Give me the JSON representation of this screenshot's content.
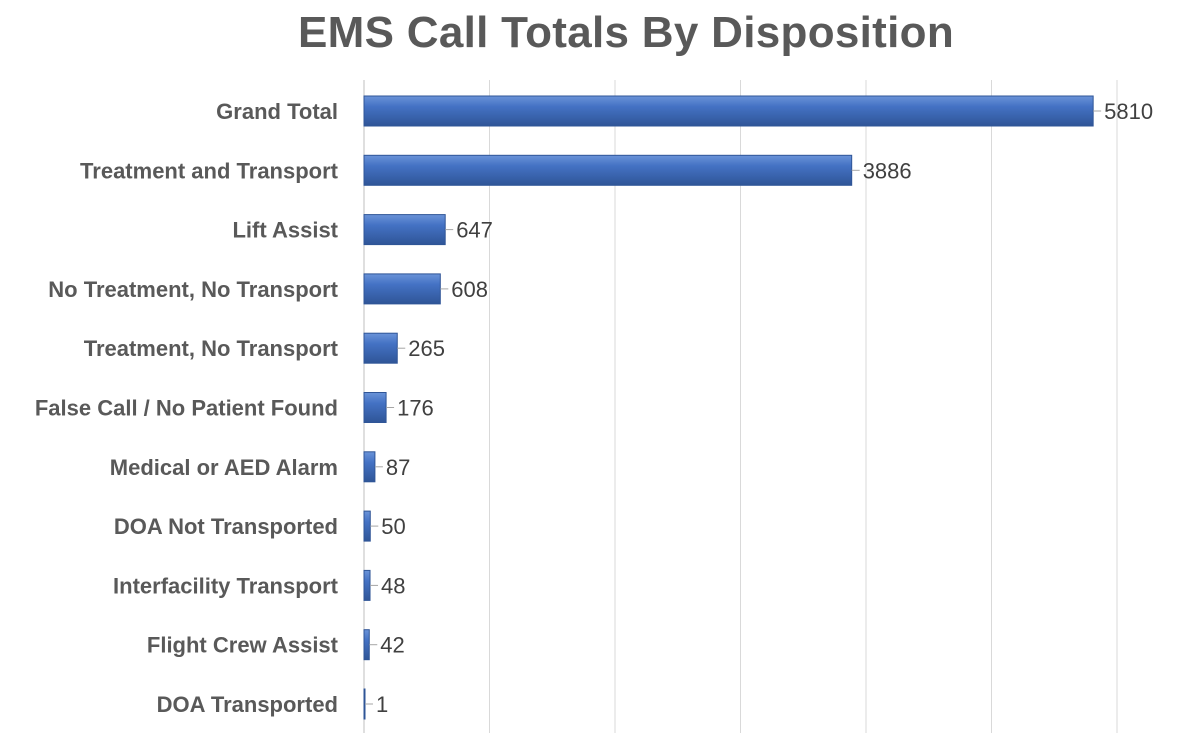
{
  "chart_data": {
    "type": "bar",
    "orientation": "horizontal",
    "title": "EMS Call Totals By Disposition",
    "xlabel": "",
    "ylabel": "",
    "categories": [
      "Grand Total",
      "Treatment and Transport",
      "Lift Assist",
      "No Treatment, No Transport",
      "Treatment, No Transport",
      "False Call / No Patient Found",
      "Medical or AED Alarm",
      "DOA Not Transported",
      "Interfacility Transport",
      "Flight Crew Assist",
      "DOA Transported"
    ],
    "values": [
      5810,
      3886,
      647,
      608,
      265,
      176,
      87,
      50,
      48,
      42,
      1
    ],
    "value_labels": [
      "5810",
      "3886",
      "647",
      "608",
      "265",
      "176",
      "87",
      "50",
      "48",
      "42",
      "1"
    ],
    "xlim": [
      0,
      6000
    ],
    "grid_step": 1000,
    "grid": true,
    "legend": "none",
    "colors": {
      "bar": "#4472c4",
      "bar_light": "#6a93d8",
      "bar_dark": "#2f5597",
      "grid": "#d9d9d9",
      "title": "#595959",
      "category_text": "#595959",
      "value_text": "#404040"
    }
  }
}
